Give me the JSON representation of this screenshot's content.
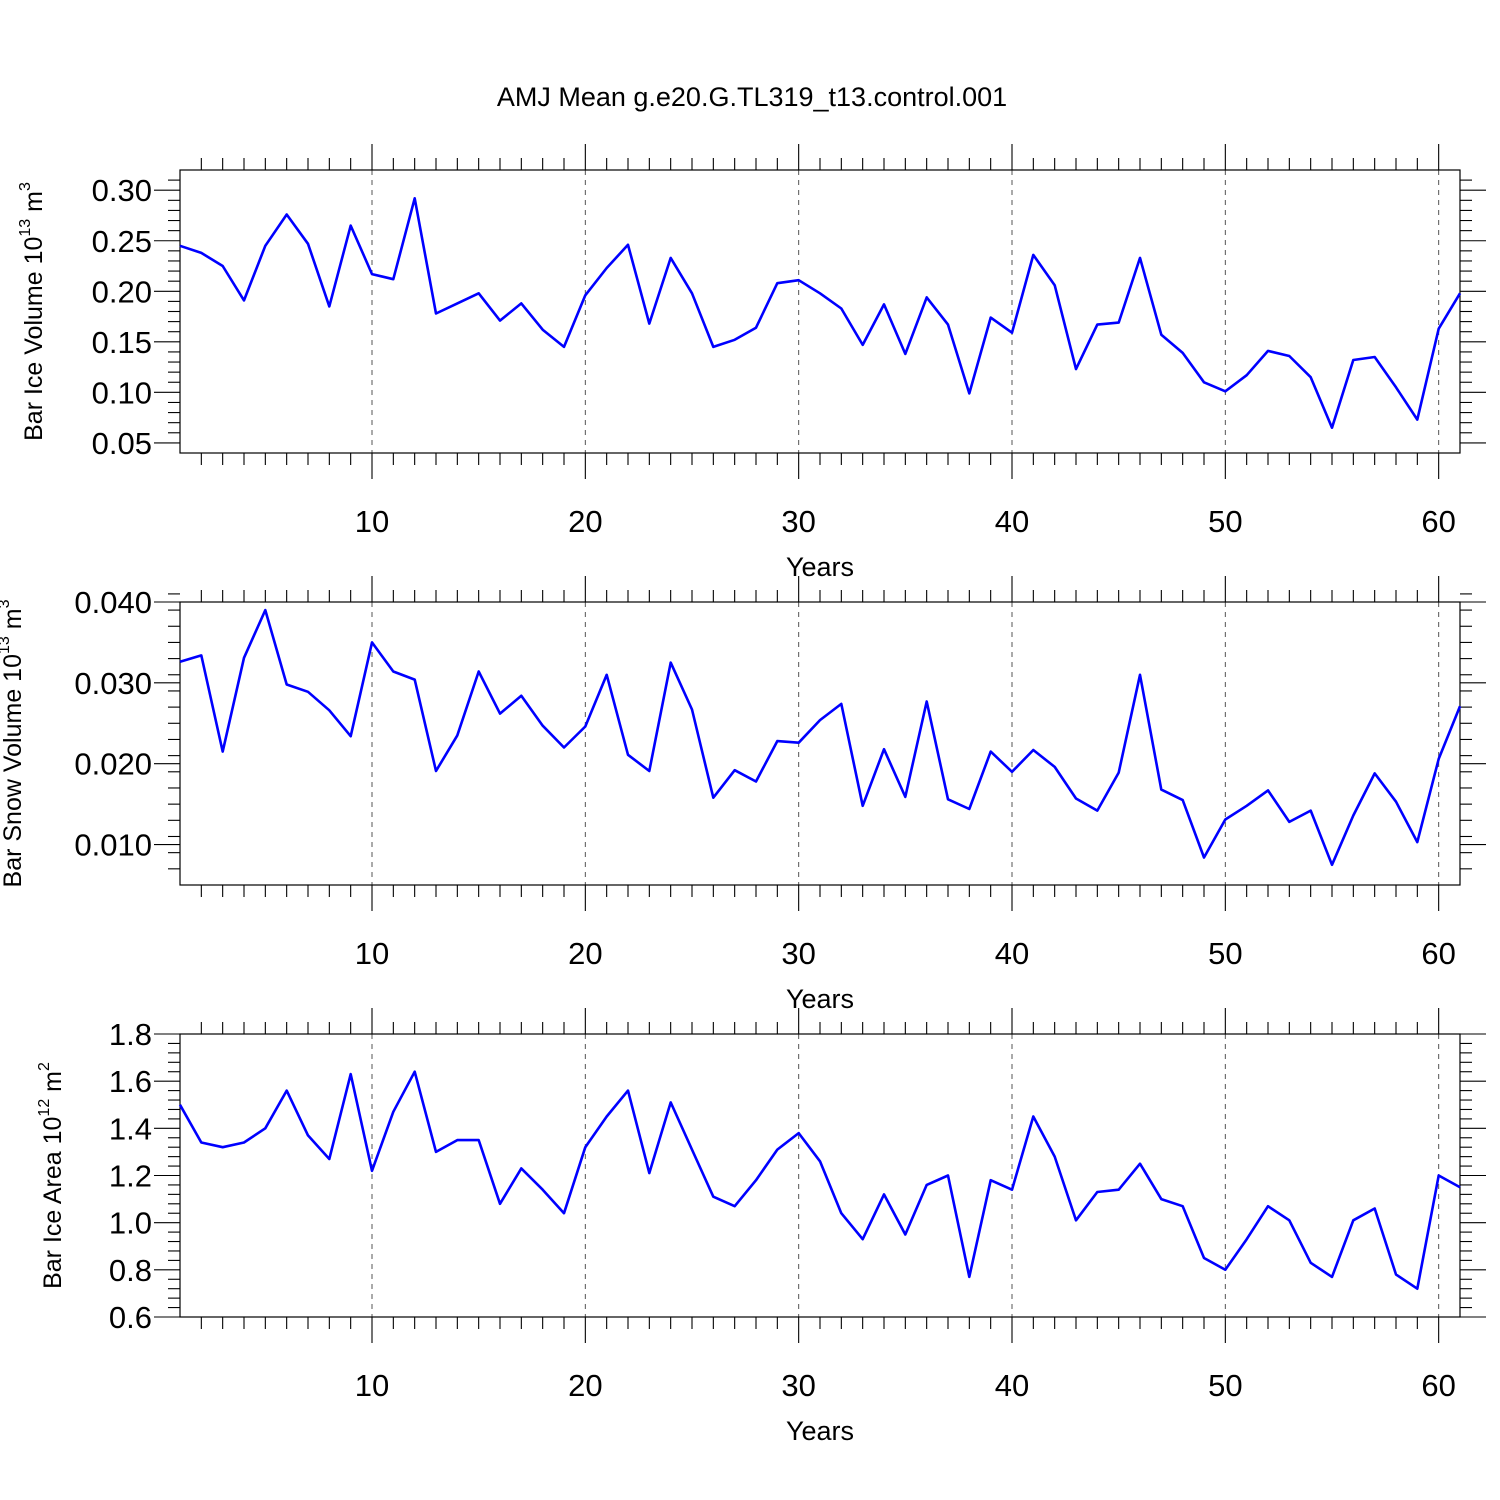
{
  "title": "AMJ Mean g.e20.G.TL319_t13.control.001",
  "chart_data": [
    {
      "type": "line",
      "ylabel": "Bar Ice Volume",
      "ylabel_unit_base": "10",
      "ylabel_unit_exp": "13",
      "ylabel_unit_name": "m",
      "ylabel_unit_power": "3",
      "xlabel": "Years",
      "xlim": [
        1,
        61
      ],
      "ylim": [
        0.04,
        0.32
      ],
      "xticks": [
        10,
        20,
        30,
        40,
        50,
        60
      ],
      "yticks": [
        0.05,
        0.1,
        0.15,
        0.2,
        0.25,
        0.3
      ],
      "ytick_labels": [
        "0.05",
        "0.10",
        "0.15",
        "0.20",
        "0.25",
        "0.30"
      ],
      "ygrid_minor_step": 0.01,
      "grid": "vertical dashed at major x ticks",
      "color": "#0000ff",
      "x": [
        1,
        2,
        3,
        4,
        5,
        6,
        7,
        8,
        9,
        10,
        11,
        12,
        13,
        14,
        15,
        16,
        17,
        18,
        19,
        20,
        21,
        22,
        23,
        24,
        25,
        26,
        27,
        28,
        29,
        30,
        31,
        32,
        33,
        34,
        35,
        36,
        37,
        38,
        39,
        40,
        41,
        42,
        43,
        44,
        45,
        46,
        47,
        48,
        49,
        50,
        51,
        52,
        53,
        54,
        55,
        56,
        57,
        58,
        59,
        60,
        61
      ],
      "y": [
        0.245,
        0.238,
        0.225,
        0.191,
        0.245,
        0.276,
        0.247,
        0.185,
        0.265,
        0.217,
        0.212,
        0.292,
        0.178,
        0.188,
        0.198,
        0.171,
        0.188,
        0.162,
        0.145,
        0.196,
        0.223,
        0.246,
        0.168,
        0.233,
        0.198,
        0.145,
        0.152,
        0.164,
        0.208,
        0.211,
        0.198,
        0.183,
        0.147,
        0.187,
        0.138,
        0.194,
        0.167,
        0.099,
        0.174,
        0.159,
        0.236,
        0.206,
        0.123,
        0.167,
        0.169,
        0.233,
        0.157,
        0.139,
        0.11,
        0.101,
        0.117,
        0.141,
        0.136,
        0.115,
        0.065,
        0.132,
        0.135,
        0.105,
        0.073,
        0.163,
        0.198
      ]
    },
    {
      "type": "line",
      "ylabel": "Bar Snow Volume",
      "ylabel_unit_base": "10",
      "ylabel_unit_exp": "13",
      "ylabel_unit_name": "m",
      "ylabel_unit_power": "3",
      "xlabel": "Years",
      "xlim": [
        1,
        61
      ],
      "ylim": [
        0.005,
        0.04
      ],
      "xticks": [
        10,
        20,
        30,
        40,
        50,
        60
      ],
      "yticks": [
        0.01,
        0.02,
        0.03,
        0.04
      ],
      "ytick_labels": [
        "0.010",
        "0.020",
        "0.030",
        "0.040"
      ],
      "ygrid_minor_step": 0.002,
      "grid": "vertical dashed at major x ticks",
      "color": "#0000ff",
      "x": [
        1,
        2,
        3,
        4,
        5,
        6,
        7,
        8,
        9,
        10,
        11,
        12,
        13,
        14,
        15,
        16,
        17,
        18,
        19,
        20,
        21,
        22,
        23,
        24,
        25,
        26,
        27,
        28,
        29,
        30,
        31,
        32,
        33,
        34,
        35,
        36,
        37,
        38,
        39,
        40,
        41,
        42,
        43,
        44,
        45,
        46,
        47,
        48,
        49,
        50,
        51,
        52,
        53,
        54,
        55,
        56,
        57,
        58,
        59,
        60,
        61
      ],
      "y": [
        0.0326,
        0.0334,
        0.0215,
        0.0331,
        0.039,
        0.0298,
        0.0289,
        0.0266,
        0.0234,
        0.035,
        0.0314,
        0.0304,
        0.0191,
        0.0235,
        0.0314,
        0.0262,
        0.0284,
        0.0247,
        0.022,
        0.0246,
        0.031,
        0.0211,
        0.0191,
        0.0325,
        0.0267,
        0.0158,
        0.0192,
        0.0178,
        0.0228,
        0.0226,
        0.0254,
        0.0274,
        0.0148,
        0.0218,
        0.0159,
        0.0277,
        0.0156,
        0.0144,
        0.0215,
        0.019,
        0.0217,
        0.0196,
        0.0157,
        0.0142,
        0.0189,
        0.031,
        0.0168,
        0.0155,
        0.0084,
        0.0131,
        0.0148,
        0.0167,
        0.0128,
        0.0142,
        0.0075,
        0.0136,
        0.0188,
        0.0153,
        0.0103,
        0.0206,
        0.0271
      ]
    },
    {
      "type": "line",
      "ylabel": "Bar Ice Area",
      "ylabel_unit_base": "10",
      "ylabel_unit_exp": "12",
      "ylabel_unit_name": "m",
      "ylabel_unit_power": "2",
      "xlabel": "Years",
      "xlim": [
        1,
        61
      ],
      "ylim": [
        0.6,
        1.8
      ],
      "xticks": [
        10,
        20,
        30,
        40,
        50,
        60
      ],
      "yticks": [
        0.6,
        0.8,
        1.0,
        1.2,
        1.4,
        1.6,
        1.8
      ],
      "ytick_labels": [
        "0.6",
        "0.8",
        "1.0",
        "1.2",
        "1.4",
        "1.6",
        "1.8"
      ],
      "ygrid_minor_step": 0.04,
      "grid": "vertical dashed at major x ticks",
      "color": "#0000ff",
      "x": [
        1,
        2,
        3,
        4,
        5,
        6,
        7,
        8,
        9,
        10,
        11,
        12,
        13,
        14,
        15,
        16,
        17,
        18,
        19,
        20,
        21,
        22,
        23,
        24,
        25,
        26,
        27,
        28,
        29,
        30,
        31,
        32,
        33,
        34,
        35,
        36,
        37,
        38,
        39,
        40,
        41,
        42,
        43,
        44,
        45,
        46,
        47,
        48,
        49,
        50,
        51,
        52,
        53,
        54,
        55,
        56,
        57,
        58,
        59,
        60,
        61
      ],
      "y": [
        1.5,
        1.34,
        1.32,
        1.34,
        1.4,
        1.56,
        1.37,
        1.27,
        1.63,
        1.22,
        1.47,
        1.64,
        1.3,
        1.35,
        1.35,
        1.08,
        1.23,
        1.14,
        1.04,
        1.32,
        1.45,
        1.56,
        1.21,
        1.51,
        1.31,
        1.11,
        1.07,
        1.18,
        1.31,
        1.38,
        1.26,
        1.04,
        0.93,
        1.12,
        0.95,
        1.16,
        1.2,
        0.77,
        1.18,
        1.14,
        1.45,
        1.28,
        1.01,
        1.13,
        1.14,
        1.25,
        1.1,
        1.07,
        0.85,
        0.8,
        0.93,
        1.07,
        1.01,
        0.83,
        0.77,
        1.01,
        1.06,
        0.78,
        0.72,
        1.2,
        1.15
      ]
    }
  ]
}
